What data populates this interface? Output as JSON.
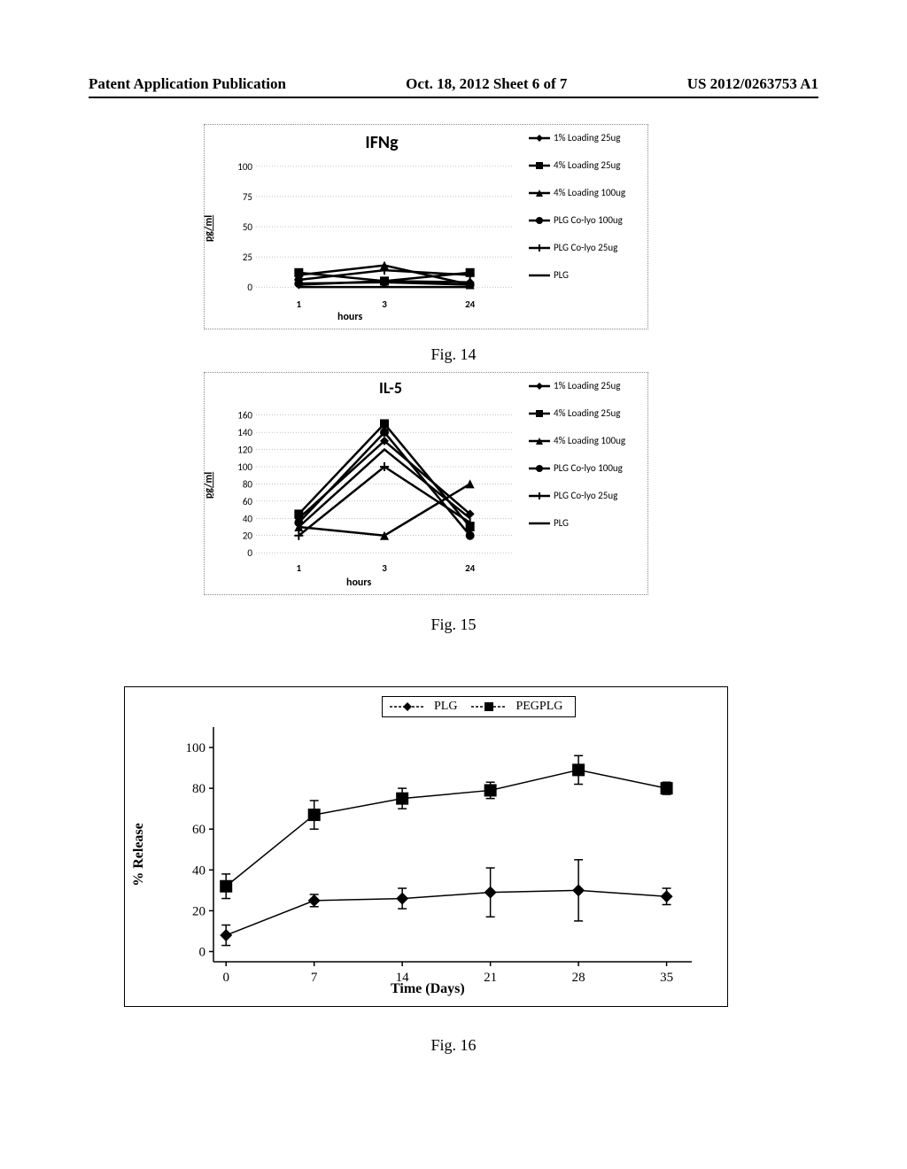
{
  "header": {
    "left": "Patent Application Publication",
    "center": "Oct. 18, 2012  Sheet 6 of 7",
    "right": "US 2012/0263753 A1"
  },
  "captions": {
    "fig14": "Fig. 14",
    "fig15": "Fig. 15",
    "fig16": "Fig. 16"
  },
  "chart14": {
    "type": "line",
    "title": "IFNg",
    "title_fontsize": 20,
    "ylabel": "pg/ml",
    "xlabel": "hours",
    "x_ticks": [
      "1",
      "3",
      "24"
    ],
    "y_ticks": [
      "0",
      "25",
      "50",
      "75",
      "100"
    ],
    "ylim": [
      -5,
      105
    ],
    "grid_color": "#888888",
    "background_color": "#ffffff",
    "series": [
      {
        "name": "1% Loading 25ug",
        "marker": "diamond",
        "color": "#000000",
        "values": [
          2,
          5,
          4
        ]
      },
      {
        "name": "4% Loading 25ug",
        "marker": "square",
        "color": "#000000",
        "values": [
          12,
          5,
          12
        ]
      },
      {
        "name": "4% Loading 100ug",
        "marker": "triangle",
        "color": "#000000",
        "values": [
          10,
          18,
          2
        ]
      },
      {
        "name": "PLG Co-lyo 100ug",
        "marker": "circle",
        "color": "#000000",
        "values": [
          3,
          4,
          2
        ]
      },
      {
        "name": "PLG Co-lyo 25ug",
        "marker": "plus",
        "color": "#000000",
        "values": [
          6,
          14,
          10
        ]
      },
      {
        "name": "PLG",
        "marker": "line",
        "color": "#000000",
        "values": [
          0,
          0,
          0
        ]
      }
    ]
  },
  "chart15": {
    "type": "line",
    "title": "IL-5",
    "title_fontsize": 18,
    "ylabel": "pg/ml",
    "xlabel": "hours",
    "x_ticks": [
      "1",
      "3",
      "24"
    ],
    "y_ticks": [
      "0",
      "20",
      "40",
      "60",
      "80",
      "100",
      "120",
      "140",
      "160"
    ],
    "ylim": [
      -5,
      170
    ],
    "grid_color": "#888888",
    "background_color": "#ffffff",
    "series": [
      {
        "name": "1% Loading 25ug",
        "marker": "diamond",
        "color": "#000000",
        "values": [
          40,
          130,
          45
        ]
      },
      {
        "name": "4% Loading 25ug",
        "marker": "square",
        "color": "#000000",
        "values": [
          45,
          150,
          30
        ]
      },
      {
        "name": "4% Loading 100ug",
        "marker": "triangle",
        "color": "#000000",
        "values": [
          30,
          20,
          80
        ]
      },
      {
        "name": "PLG Co-lyo 100ug",
        "marker": "circle",
        "color": "#000000",
        "values": [
          35,
          140,
          20
        ]
      },
      {
        "name": "PLG Co-lyo 25ug",
        "marker": "plus",
        "color": "#000000",
        "values": [
          20,
          100,
          35
        ]
      },
      {
        "name": "PLG",
        "marker": "line",
        "color": "#000000",
        "values": [
          30,
          120,
          40
        ]
      }
    ]
  },
  "chart16": {
    "type": "line-errorbar",
    "ylabel": "% Release",
    "xlabel": "Time (Days)",
    "x_ticks": [
      "0",
      "7",
      "14",
      "21",
      "28",
      "35"
    ],
    "y_ticks": [
      "0",
      "20",
      "40",
      "60",
      "80",
      "100"
    ],
    "xlim": [
      -1,
      37
    ],
    "ylim": [
      -5,
      110
    ],
    "background_color": "#ffffff",
    "series": [
      {
        "name": "PLG",
        "marker": "diamond",
        "color": "#000000",
        "x": [
          0,
          7,
          14,
          21,
          28,
          35
        ],
        "y": [
          8,
          25,
          26,
          29,
          30,
          27
        ],
        "err": [
          5,
          3,
          5,
          12,
          15,
          4
        ]
      },
      {
        "name": "PEGPLG",
        "marker": "square",
        "color": "#000000",
        "x": [
          0,
          7,
          14,
          21,
          28,
          35
        ],
        "y": [
          32,
          67,
          75,
          79,
          89,
          80
        ],
        "err": [
          6,
          7,
          5,
          4,
          7,
          3
        ]
      }
    ]
  }
}
